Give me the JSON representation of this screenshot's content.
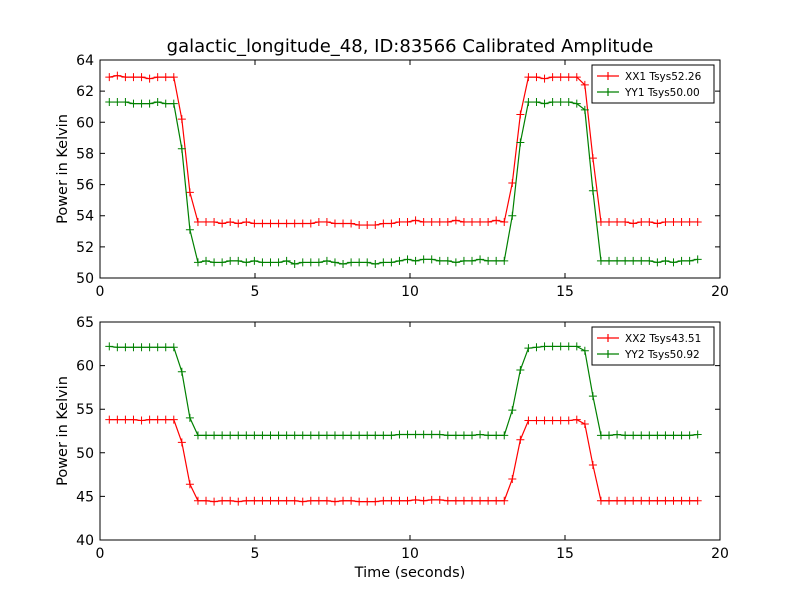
{
  "figure": {
    "title": "galactic_longitude_48, ID:83566 Calibrated Amplitude",
    "xlabel": "Time (seconds)"
  },
  "chart_data": [
    {
      "type": "line",
      "title": "galactic_longitude_48, ID:83566 Calibrated Amplitude",
      "xlabel": "",
      "ylabel": "Power in Kelvin",
      "xlim": [
        0,
        20
      ],
      "ylim": [
        50,
        64
      ],
      "xticks": [
        0,
        5,
        10,
        15,
        20
      ],
      "yticks": [
        50,
        52,
        54,
        56,
        58,
        60,
        62,
        64
      ],
      "grid": false,
      "legend_position": "top-right",
      "x": [
        0.3,
        0.56,
        0.82,
        1.08,
        1.34,
        1.6,
        1.86,
        2.12,
        2.38,
        2.64,
        2.9,
        3.16,
        3.42,
        3.68,
        3.94,
        4.2,
        4.46,
        4.72,
        4.98,
        5.24,
        5.5,
        5.76,
        6.02,
        6.28,
        6.54,
        6.8,
        7.06,
        7.32,
        7.58,
        7.84,
        8.1,
        8.36,
        8.62,
        8.88,
        9.14,
        9.4,
        9.66,
        9.92,
        10.18,
        10.44,
        10.7,
        10.96,
        11.22,
        11.48,
        11.74,
        12.0,
        12.26,
        12.52,
        12.78,
        13.04,
        13.3,
        13.56,
        13.82,
        14.08,
        14.34,
        14.6,
        14.86,
        15.12,
        15.38,
        15.64,
        15.9,
        16.16,
        16.42,
        16.68,
        16.94,
        17.2,
        17.46,
        17.72,
        17.98,
        18.24,
        18.5,
        18.76,
        19.02,
        19.28
      ],
      "series": [
        {
          "name": "XX1 Tsys52.26",
          "color": "#ff0000",
          "values": [
            62.9,
            63.0,
            62.9,
            62.9,
            62.9,
            62.8,
            62.9,
            62.9,
            62.9,
            60.2,
            55.5,
            53.6,
            53.6,
            53.6,
            53.5,
            53.6,
            53.5,
            53.6,
            53.5,
            53.5,
            53.5,
            53.5,
            53.5,
            53.5,
            53.5,
            53.5,
            53.6,
            53.6,
            53.5,
            53.5,
            53.5,
            53.4,
            53.4,
            53.4,
            53.5,
            53.5,
            53.6,
            53.6,
            53.7,
            53.6,
            53.6,
            53.6,
            53.6,
            53.7,
            53.6,
            53.6,
            53.6,
            53.6,
            53.7,
            53.6,
            56.1,
            60.5,
            62.9,
            62.9,
            62.8,
            62.9,
            62.9,
            62.9,
            62.9,
            62.4,
            57.7,
            53.6,
            53.6,
            53.6,
            53.6,
            53.5,
            53.6,
            53.6,
            53.5,
            53.6,
            53.6,
            53.6,
            53.6,
            53.6
          ]
        },
        {
          "name": "YY1 Tsys50.00",
          "color": "#008000",
          "values": [
            61.3,
            61.3,
            61.3,
            61.2,
            61.2,
            61.2,
            61.3,
            61.2,
            61.2,
            58.3,
            53.1,
            51.0,
            51.1,
            51.0,
            51.0,
            51.1,
            51.1,
            51.0,
            51.1,
            51.0,
            51.0,
            51.0,
            51.1,
            50.9,
            51.0,
            51.0,
            51.0,
            51.1,
            51.0,
            50.9,
            51.0,
            51.0,
            51.0,
            50.9,
            51.0,
            51.0,
            51.1,
            51.2,
            51.1,
            51.2,
            51.2,
            51.1,
            51.1,
            51.0,
            51.1,
            51.1,
            51.2,
            51.1,
            51.1,
            51.1,
            54.0,
            58.7,
            61.3,
            61.3,
            61.2,
            61.3,
            61.3,
            61.3,
            61.2,
            60.8,
            55.6,
            51.1,
            51.1,
            51.1,
            51.1,
            51.1,
            51.1,
            51.1,
            51.0,
            51.1,
            51.0,
            51.1,
            51.1,
            51.2
          ]
        }
      ]
    },
    {
      "type": "line",
      "title": "",
      "xlabel": "Time (seconds)",
      "ylabel": "Power in Kelvin",
      "xlim": [
        0,
        20
      ],
      "ylim": [
        40,
        65
      ],
      "xticks": [
        0,
        5,
        10,
        15,
        20
      ],
      "yticks": [
        40,
        45,
        50,
        55,
        60,
        65
      ],
      "grid": false,
      "legend_position": "top-right",
      "x": [
        0.3,
        0.56,
        0.82,
        1.08,
        1.34,
        1.6,
        1.86,
        2.12,
        2.38,
        2.64,
        2.9,
        3.16,
        3.42,
        3.68,
        3.94,
        4.2,
        4.46,
        4.72,
        4.98,
        5.24,
        5.5,
        5.76,
        6.02,
        6.28,
        6.54,
        6.8,
        7.06,
        7.32,
        7.58,
        7.84,
        8.1,
        8.36,
        8.62,
        8.88,
        9.14,
        9.4,
        9.66,
        9.92,
        10.18,
        10.44,
        10.7,
        10.96,
        11.22,
        11.48,
        11.74,
        12.0,
        12.26,
        12.52,
        12.78,
        13.04,
        13.3,
        13.56,
        13.82,
        14.08,
        14.34,
        14.6,
        14.86,
        15.12,
        15.38,
        15.64,
        15.9,
        16.16,
        16.42,
        16.68,
        16.94,
        17.2,
        17.46,
        17.72,
        17.98,
        18.24,
        18.5,
        18.76,
        19.02,
        19.28
      ],
      "series": [
        {
          "name": "XX2 Tsys43.51",
          "color": "#ff0000",
          "values": [
            53.8,
            53.8,
            53.8,
            53.8,
            53.7,
            53.8,
            53.8,
            53.8,
            53.8,
            51.2,
            46.4,
            44.5,
            44.5,
            44.4,
            44.5,
            44.5,
            44.4,
            44.5,
            44.5,
            44.5,
            44.5,
            44.5,
            44.5,
            44.5,
            44.4,
            44.5,
            44.5,
            44.5,
            44.4,
            44.5,
            44.5,
            44.4,
            44.4,
            44.4,
            44.5,
            44.5,
            44.5,
            44.5,
            44.6,
            44.5,
            44.6,
            44.6,
            44.5,
            44.5,
            44.5,
            44.5,
            44.5,
            44.5,
            44.5,
            44.5,
            47.0,
            51.5,
            53.7,
            53.7,
            53.7,
            53.7,
            53.7,
            53.7,
            53.8,
            53.3,
            48.6,
            44.5,
            44.5,
            44.5,
            44.5,
            44.5,
            44.5,
            44.5,
            44.5,
            44.5,
            44.5,
            44.5,
            44.5,
            44.5
          ]
        },
        {
          "name": "YY2 Tsys50.92",
          "color": "#008000",
          "values": [
            62.2,
            62.1,
            62.1,
            62.1,
            62.1,
            62.1,
            62.1,
            62.1,
            62.1,
            59.3,
            54.0,
            52.0,
            52.0,
            52.0,
            52.0,
            52.0,
            52.0,
            52.0,
            52.0,
            52.0,
            52.0,
            52.0,
            52.0,
            52.0,
            52.0,
            52.0,
            52.0,
            52.0,
            52.0,
            52.0,
            52.0,
            52.0,
            52.0,
            52.0,
            52.0,
            52.0,
            52.1,
            52.1,
            52.1,
            52.1,
            52.1,
            52.1,
            52.0,
            52.0,
            52.0,
            52.0,
            52.1,
            52.0,
            52.0,
            52.0,
            54.9,
            59.5,
            62.0,
            62.1,
            62.2,
            62.2,
            62.2,
            62.2,
            62.2,
            61.7,
            56.5,
            52.0,
            52.0,
            52.1,
            52.0,
            52.0,
            52.0,
            52.0,
            52.0,
            52.0,
            52.0,
            52.0,
            52.0,
            52.1
          ]
        }
      ]
    }
  ]
}
